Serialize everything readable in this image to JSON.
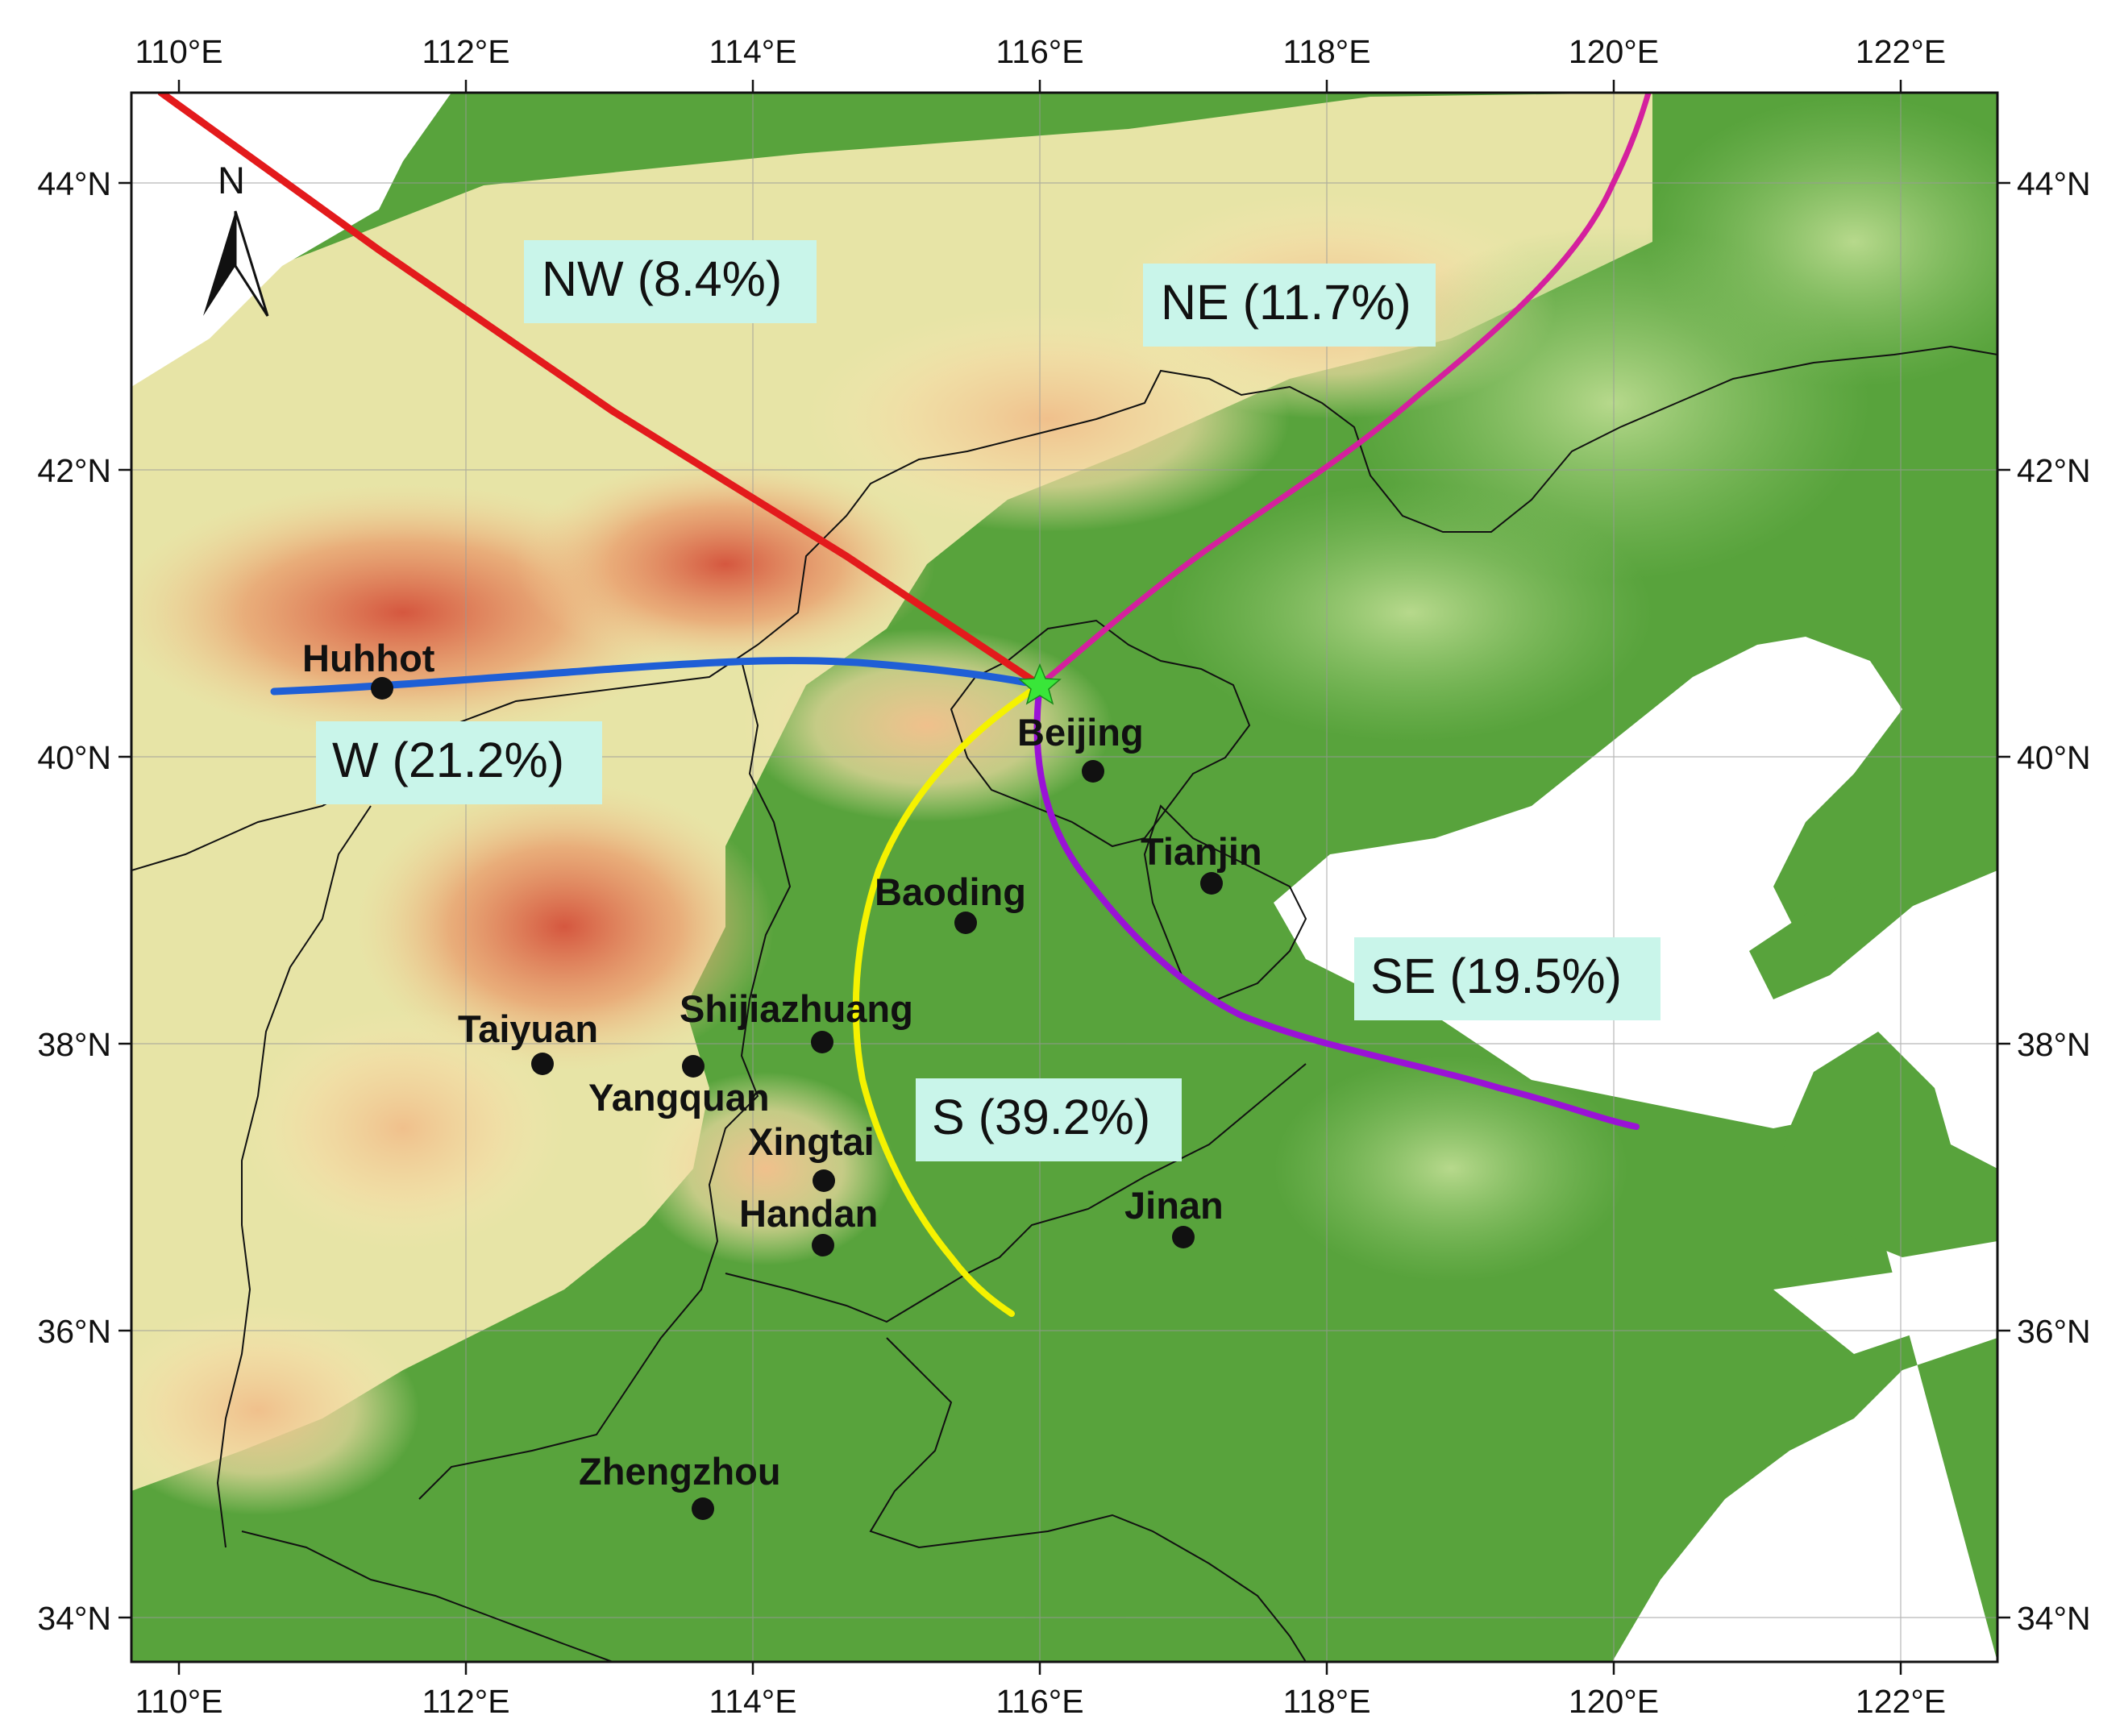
{
  "map": {
    "longitude_ticks": [
      "110°E",
      "112°E",
      "114°E",
      "116°E",
      "118°E",
      "120°E",
      "122°E"
    ],
    "latitude_ticks": [
      "44°N",
      "42°N",
      "40°N",
      "38°N",
      "36°N",
      "34°N"
    ],
    "north_label": "N",
    "receptor_site": {
      "lon": 115.95,
      "lat": 40.45
    },
    "trajectories": [
      {
        "id": "nw",
        "label": "NW (8.4%)",
        "color": "#e31a1c"
      },
      {
        "id": "ne",
        "label": "NE (11.7%)",
        "color": "#d4209e"
      },
      {
        "id": "w",
        "label": "W (21.2%)",
        "color": "#1f5fd6"
      },
      {
        "id": "se",
        "label": "SE (19.5%)",
        "color": "#9a12d6"
      },
      {
        "id": "s",
        "label": "S (39.2%)",
        "color": "#f5f200"
      }
    ],
    "cities": [
      {
        "name": "Huhhot",
        "lon": 111.4,
        "lat": 40.5
      },
      {
        "name": "Beijing",
        "lon": 116.4,
        "lat": 39.9
      },
      {
        "name": "Tianjin",
        "lon": 117.2,
        "lat": 39.1
      },
      {
        "name": "Baoding",
        "lon": 115.5,
        "lat": 38.9
      },
      {
        "name": "Shijiazhuang",
        "lon": 114.5,
        "lat": 38.0
      },
      {
        "name": "Taiyuan",
        "lon": 112.5,
        "lat": 37.9
      },
      {
        "name": "Yangquan",
        "lon": 113.6,
        "lat": 37.9
      },
      {
        "name": "Xingtai",
        "lon": 114.5,
        "lat": 37.1
      },
      {
        "name": "Handan",
        "lon": 114.5,
        "lat": 36.6
      },
      {
        "name": "Jinan",
        "lon": 117.0,
        "lat": 36.7
      },
      {
        "name": "Zhengzhou",
        "lon": 113.7,
        "lat": 34.8
      }
    ]
  }
}
